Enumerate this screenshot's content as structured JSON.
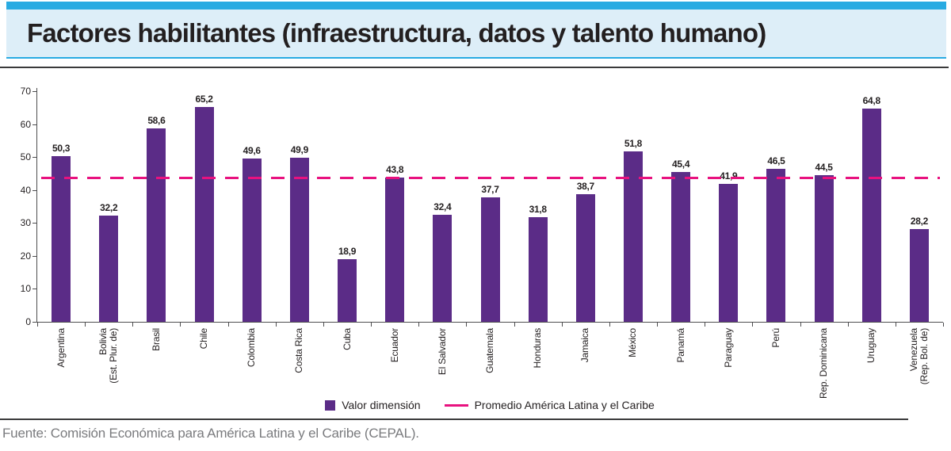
{
  "header": {
    "title": "Factores habilitantes (infraestructura, datos y talento humano)"
  },
  "chart_data": {
    "type": "bar",
    "title": "Factores habilitantes (infraestructura, datos y talento humano)",
    "categories": [
      {
        "name": "Argentina",
        "lines": [
          "Argentina"
        ]
      },
      {
        "name": "Bolivia (Est. Plur. de)",
        "lines": [
          "Bolivia",
          "(Est. Plur. de)"
        ]
      },
      {
        "name": "Brasil",
        "lines": [
          "Brasil"
        ]
      },
      {
        "name": "Chile",
        "lines": [
          "Chile"
        ]
      },
      {
        "name": "Colombia",
        "lines": [
          "Colombia"
        ]
      },
      {
        "name": "Costa Rica",
        "lines": [
          "Costa Rica"
        ]
      },
      {
        "name": "Cuba",
        "lines": [
          "Cuba"
        ]
      },
      {
        "name": "Ecuador",
        "lines": [
          "Ecuador"
        ]
      },
      {
        "name": "El Salvador",
        "lines": [
          "El Salvador"
        ]
      },
      {
        "name": "Guatemala",
        "lines": [
          "Guatemala"
        ]
      },
      {
        "name": "Honduras",
        "lines": [
          "Honduras"
        ]
      },
      {
        "name": "Jamaica",
        "lines": [
          "Jamaica"
        ]
      },
      {
        "name": "México",
        "lines": [
          "México"
        ]
      },
      {
        "name": "Panamá",
        "lines": [
          "Panamá"
        ]
      },
      {
        "name": "Paraguay",
        "lines": [
          "Paraguay"
        ]
      },
      {
        "name": "Perú",
        "lines": [
          "Perú"
        ]
      },
      {
        "name": "Rep. Dominicana",
        "lines": [
          "Rep. Dominicana"
        ]
      },
      {
        "name": "Uruguay",
        "lines": [
          "Uruguay"
        ]
      },
      {
        "name": "Venezuela (Rep. Bol. de)",
        "lines": [
          "Venezuela",
          "(Rep. Bol. de)"
        ]
      }
    ],
    "values": [
      50.3,
      32.2,
      58.6,
      65.2,
      49.6,
      49.9,
      18.9,
      43.8,
      32.4,
      37.7,
      31.8,
      38.7,
      51.8,
      45.4,
      41.9,
      46.5,
      44.5,
      64.8,
      28.2
    ],
    "value_labels": [
      "50,3",
      "32,2",
      "58,6",
      "65,2",
      "49,6",
      "49,9",
      "18,9",
      "43,8",
      "32,4",
      "37,7",
      "31,8",
      "38,7",
      "51,8",
      "45,4",
      "41,9",
      "46,5",
      "44,5",
      "64,8",
      "28,2"
    ],
    "series_name": "Valor dimensión",
    "average_line": {
      "label": "Promedio América Latina y el Caribe",
      "value": 43.8,
      "style": "dashed"
    },
    "xlabel": "",
    "ylabel": "",
    "ylim": [
      0,
      70
    ],
    "yticks": [
      0,
      10,
      20,
      30,
      40,
      50,
      60,
      70
    ],
    "grid": false,
    "legend_position": "bottom-center",
    "bar_color": "#5b2c87",
    "average_line_color": "#e8127f"
  },
  "legend": {
    "bar_label": "Valor dimensión",
    "line_label": "Promedio América Latina y el Caribe"
  },
  "footer": {
    "source": "Fuente: Comisión Económica para América Latina y el Caribe (CEPAL)."
  },
  "colors": {
    "accent_bar": "#29abe2",
    "header_background": "#ddeef8",
    "bar": "#5b2c87",
    "average_line": "#e8127f",
    "text": "#231f20",
    "axis": "#4d4d4f",
    "source_text": "#7a7b7e"
  }
}
